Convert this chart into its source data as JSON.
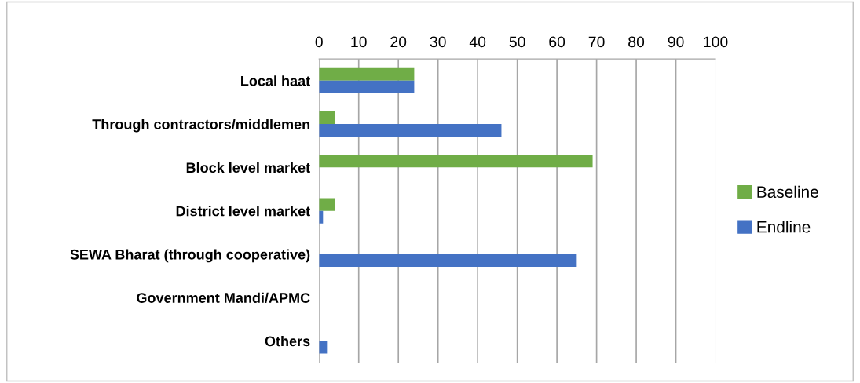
{
  "chart_data": {
    "type": "bar",
    "orientation": "horizontal",
    "categories": [
      "Local haat",
      "Through contractors/middlemen",
      "Block level market",
      "District level market",
      "SEWA Bharat (through cooperative)",
      "Government Mandi/APMC",
      "Others"
    ],
    "series": [
      {
        "name": "Baseline",
        "color": "#70ad47",
        "values": [
          24,
          4,
          69,
          4,
          0,
          0,
          0
        ]
      },
      {
        "name": "Endline",
        "color": "#4472c4",
        "values": [
          24,
          46,
          0,
          1,
          65,
          0,
          2
        ]
      }
    ],
    "xlim": [
      0,
      100
    ],
    "xticks": [
      0,
      10,
      20,
      30,
      40,
      50,
      60,
      70,
      80,
      90,
      100
    ],
    "grid": "x",
    "legend": "right"
  }
}
